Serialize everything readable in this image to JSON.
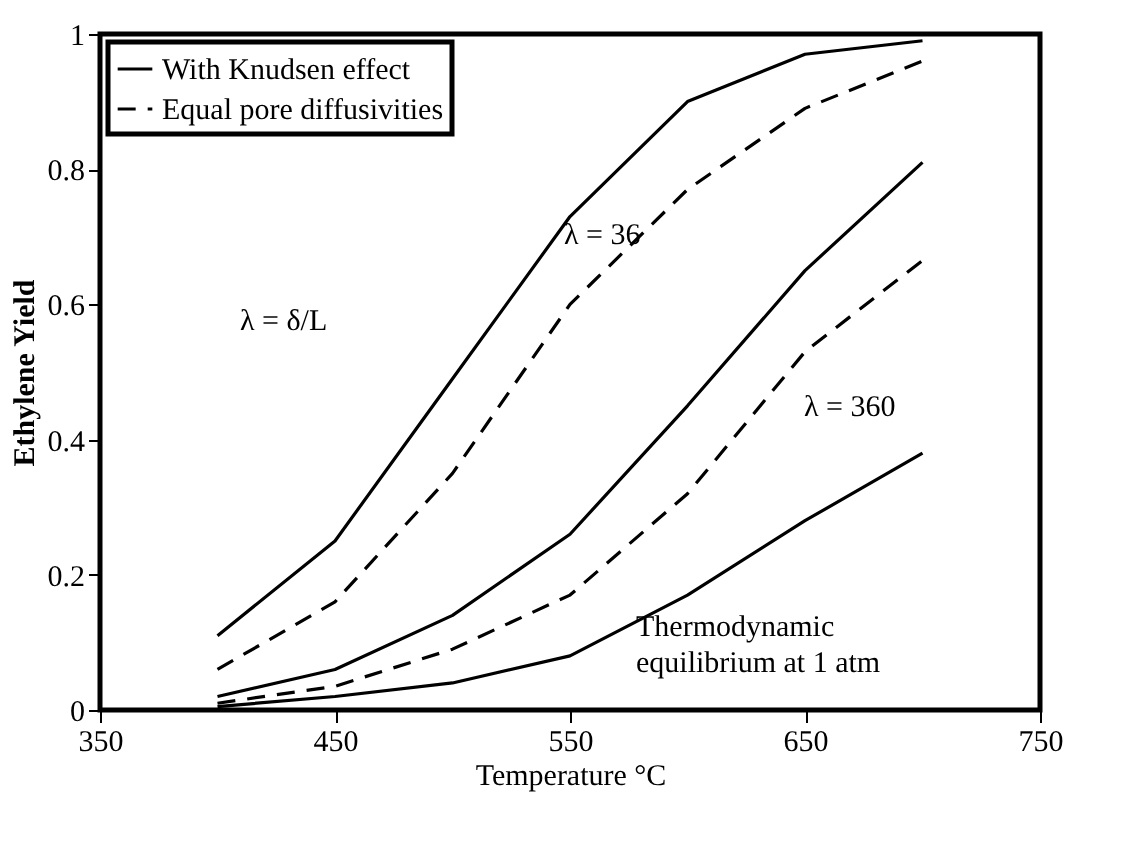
{
  "chart_data": {
    "type": "line",
    "xlabel": "Temperature °C",
    "ylabel": "Ethylene Yield",
    "x": [
      400,
      450,
      500,
      550,
      600,
      650,
      700
    ],
    "series": [
      {
        "name": "With Knudsen effect",
        "color": "#000000",
        "line_style": "solid",
        "values": [
          0.11,
          0.25,
          0.49,
          0.73,
          0.9,
          0.97,
          0.99
        ]
      },
      {
        "name": "Equal pore diffusivities",
        "color": "#000000",
        "line_style": "dashed",
        "values": [
          0.06,
          0.16,
          0.35,
          0.6,
          0.77,
          0.89,
          0.96
        ]
      },
      {
        "color": "#000000",
        "line_style": "solid",
        "values": [
          0.02,
          0.06,
          0.14,
          0.26,
          0.45,
          0.65,
          0.81
        ]
      },
      {
        "color": "#000000",
        "line_style": "dashed",
        "values": [
          0.01,
          0.035,
          0.09,
          0.17,
          0.32,
          0.53,
          0.665
        ]
      },
      {
        "color": "#000000",
        "line_style": "solid",
        "values": [
          0.005,
          0.02,
          0.04,
          0.08,
          0.17,
          0.28,
          0.38
        ]
      }
    ],
    "annotations": [
      "λ = 36",
      "λ = 360",
      "λ = δ/L",
      "Thermodynamic\nequilibrium at 1 atm"
    ],
    "xlim": [
      350,
      750
    ],
    "xticks": [
      350,
      450,
      550,
      650,
      750
    ],
    "ylim": [
      0,
      1
    ],
    "yticks": [
      0,
      0.2,
      0.4,
      0.6,
      0.8,
      1
    ],
    "grid": false,
    "legend": "top left"
  }
}
